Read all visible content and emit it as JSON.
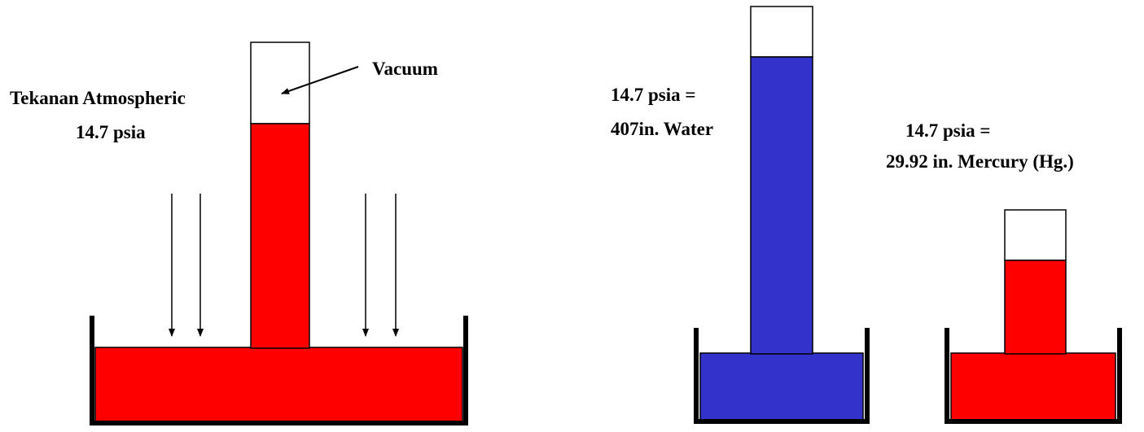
{
  "left": {
    "vacuum": "Vacuum",
    "atmospheric": "Tekanan Atmospheric",
    "pressure": "14.7 psia"
  },
  "water": {
    "pressure": "14.7 psia =",
    "height": "407in. Water"
  },
  "mercury": {
    "pressure": "14.7 psia =",
    "height": "29.92 in. Mercury (Hg.)"
  }
}
